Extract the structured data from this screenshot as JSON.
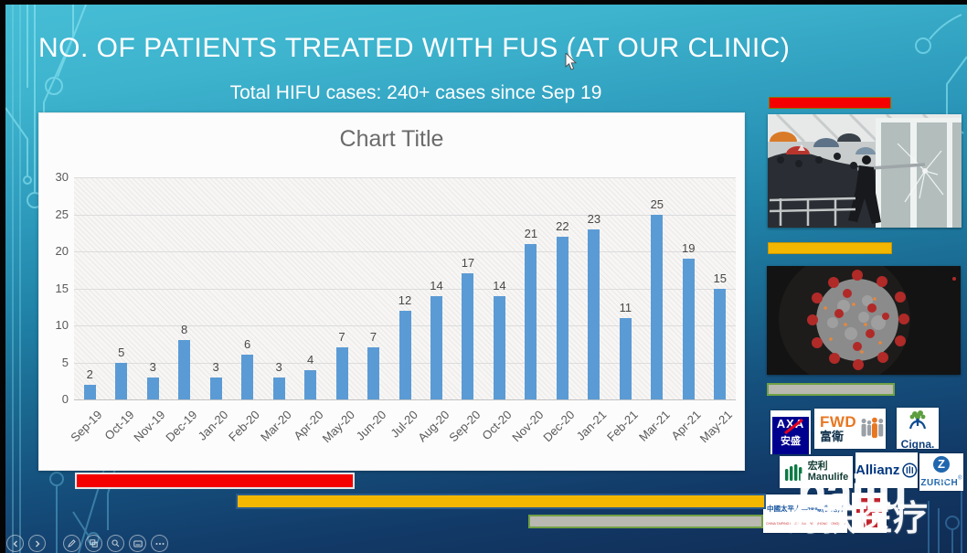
{
  "slide": {
    "title": "NO. OF PATIENTS TREATED WITH FUS (AT OUR CLINIC)",
    "subtitle": "Total HIFU cases: 240+ cases since Sep 19"
  },
  "chart_data": {
    "type": "bar",
    "title": "Chart Title",
    "categories": [
      "Sep-19",
      "Oct-19",
      "Nov-19",
      "Dec-19",
      "Jan-20",
      "Feb-20",
      "Mar-20",
      "Apr-20",
      "May-20",
      "Jun-20",
      "Jul-20",
      "Aug-20",
      "Sep-20",
      "Oct-20",
      "Nov-20",
      "Dec-20",
      "Jan-21",
      "Feb-21",
      "Mar-21",
      "Apr-21",
      "May-21"
    ],
    "values": [
      2,
      5,
      3,
      8,
      3,
      6,
      3,
      4,
      7,
      7,
      12,
      14,
      17,
      14,
      21,
      22,
      23,
      11,
      25,
      19,
      15
    ],
    "xlabel": "",
    "ylabel": "",
    "ylim": [
      0,
      30
    ],
    "yticks": [
      0,
      5,
      10,
      15,
      20,
      25,
      30
    ],
    "grid": true,
    "legend": false,
    "bar_color": "#5b9bd5",
    "plot_bg": "diagonal-hatch",
    "data_labels": true
  },
  "right_panel": {
    "accent_bars": {
      "red": "#f40000",
      "yellow": "#f3b700",
      "gray": "#b9b9b2",
      "gray_border": "#71a044"
    },
    "images": {
      "protest": "protest crowd with umbrellas ramming glass door",
      "virus": "coronavirus particle render"
    },
    "logos": {
      "axa": {
        "brand": "AXA",
        "cjk": "安盛"
      },
      "fwd": {
        "brand": "FWD",
        "cjk": "富衛"
      },
      "cigna": {
        "brand": "Cigna."
      },
      "manulife": {
        "cjk": "宏利",
        "brand": "Manulife"
      },
      "allianz": {
        "brand": "Allianz"
      },
      "zurich": {
        "brand": "ZURICH",
        "reg": "®"
      },
      "taiping": {
        "cjk": "中國太平人壽保險(香港)有限公司",
        "caption": "CHINA TAIPING LIFE INSURANCE (HONG KONG) COMPANY LIMITED"
      }
    }
  },
  "watermark": {
    "latin": "haifu",
    "reg": "®",
    "cjk": "海扶医疗"
  },
  "bottom_bars": {
    "red": "#f40000",
    "yellow": "#f3b700",
    "gray": "#b9b9b2"
  }
}
